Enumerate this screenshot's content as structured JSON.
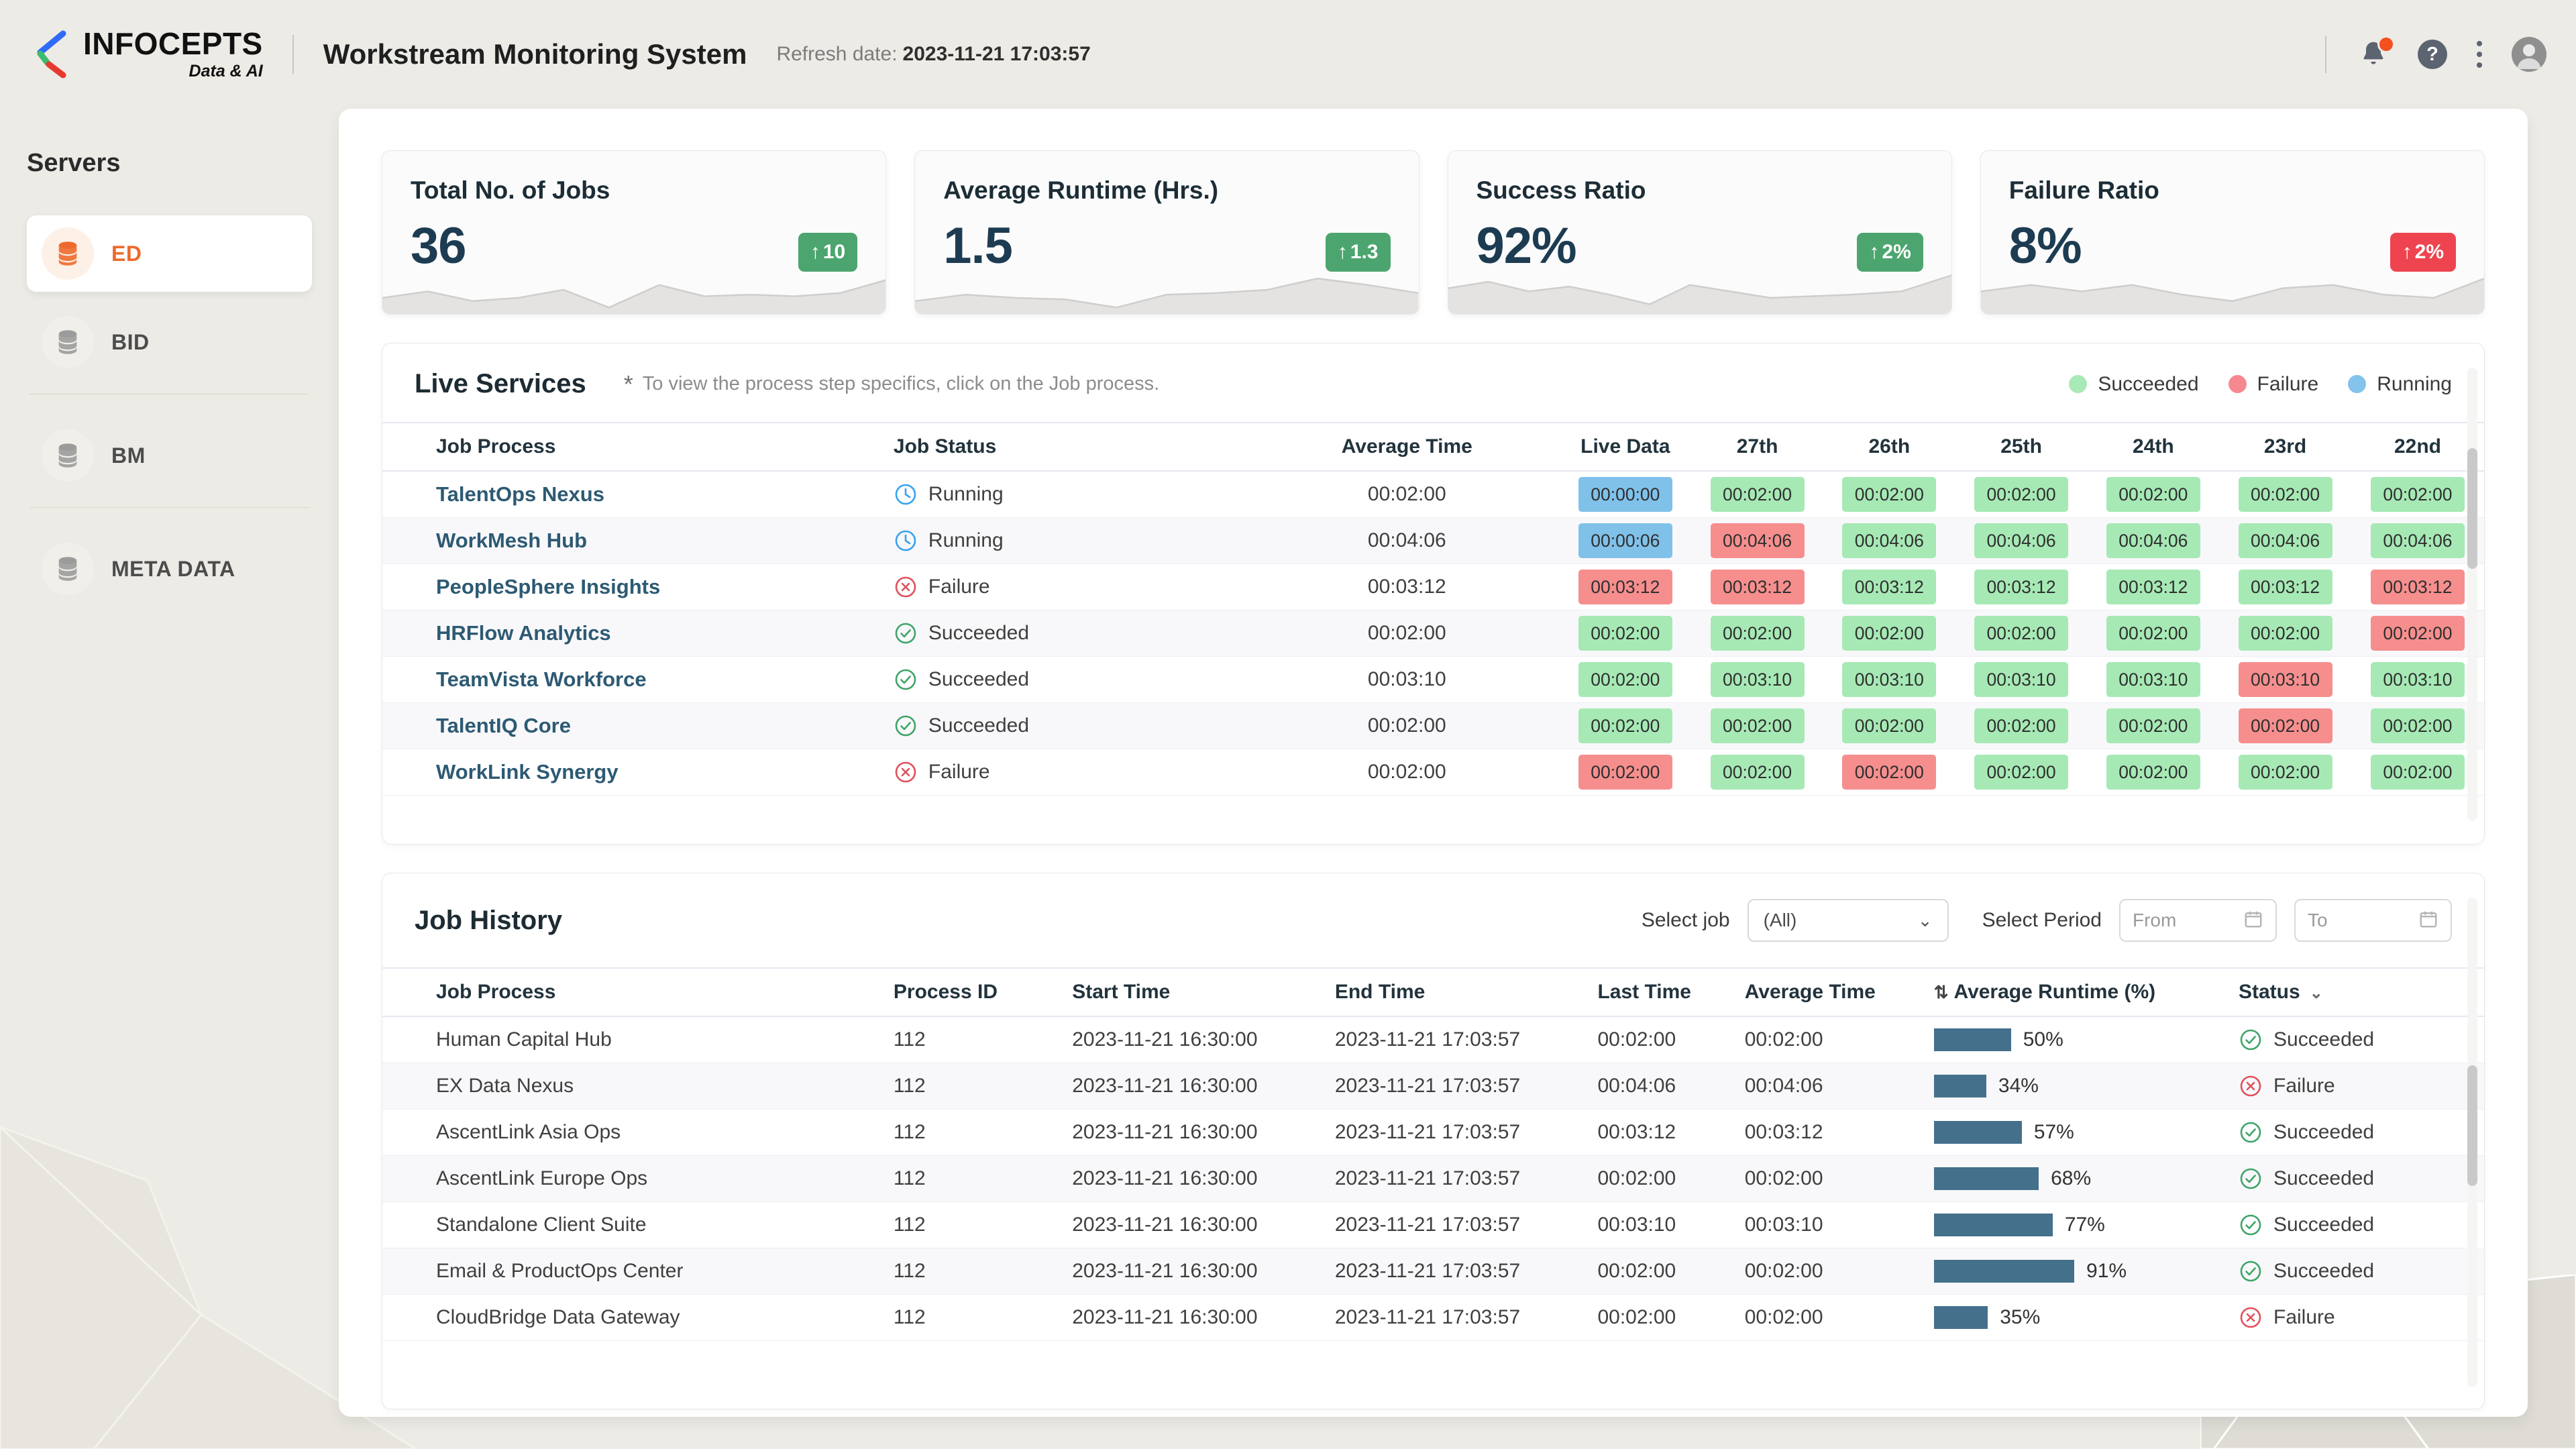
{
  "header": {
    "brand": {
      "name": "INFOCEPTS",
      "tagline": "Data & AI"
    },
    "title": "Workstream Monitoring System",
    "refresh_label": "Refresh date:",
    "refresh_value": "2023-11-21 17:03:57",
    "help_glyph": "?"
  },
  "sidebar": {
    "title": "Servers",
    "items": [
      {
        "label": "ED",
        "active": true
      },
      {
        "label": "BID",
        "active": false
      },
      {
        "label": "BM",
        "active": false
      },
      {
        "label": "META DATA",
        "active": false
      }
    ]
  },
  "kpis": [
    {
      "title": "Total No. of Jobs",
      "value": "36",
      "arrow": "↑",
      "delta": "10",
      "tone": "green",
      "sparkline": [
        [
          0,
          20
        ],
        [
          9,
          16
        ],
        [
          18,
          22
        ],
        [
          27,
          20
        ],
        [
          36,
          15
        ],
        [
          45,
          26
        ],
        [
          55,
          12
        ],
        [
          64,
          19
        ],
        [
          73,
          18
        ],
        [
          82,
          19
        ],
        [
          91,
          17
        ],
        [
          100,
          9
        ]
      ]
    },
    {
      "title": "Average Runtime (Hrs.)",
      "value": "1.5",
      "arrow": "↑",
      "delta": "1.3",
      "tone": "green",
      "sparkline": [
        [
          0,
          22
        ],
        [
          10,
          18
        ],
        [
          20,
          20
        ],
        [
          30,
          21
        ],
        [
          40,
          26
        ],
        [
          50,
          18
        ],
        [
          60,
          17
        ],
        [
          70,
          15
        ],
        [
          80,
          8
        ],
        [
          90,
          12
        ],
        [
          100,
          17
        ]
      ]
    },
    {
      "title": "Success Ratio",
      "value": "92%",
      "arrow": "↑",
      "delta": "2%",
      "tone": "green",
      "sparkline": [
        [
          0,
          14
        ],
        [
          8,
          10
        ],
        [
          16,
          16
        ],
        [
          24,
          13
        ],
        [
          32,
          18
        ],
        [
          40,
          24
        ],
        [
          48,
          12
        ],
        [
          56,
          16
        ],
        [
          64,
          20
        ],
        [
          72,
          19
        ],
        [
          80,
          18
        ],
        [
          90,
          16
        ],
        [
          100,
          6
        ]
      ]
    },
    {
      "title": "Failure Ratio",
      "value": "8%",
      "arrow": "↑",
      "delta": "2%",
      "tone": "red",
      "sparkline": [
        [
          0,
          16
        ],
        [
          10,
          12
        ],
        [
          20,
          16
        ],
        [
          30,
          12
        ],
        [
          40,
          18
        ],
        [
          50,
          22
        ],
        [
          60,
          14
        ],
        [
          70,
          12
        ],
        [
          80,
          18
        ],
        [
          90,
          20
        ],
        [
          100,
          8
        ]
      ]
    }
  ],
  "live_services": {
    "title": "Live Services",
    "note_star": "*",
    "note": "To view the process step specifics, click on the Job process.",
    "legend": [
      {
        "label": "Succeeded",
        "color": "#a9e9b7"
      },
      {
        "label": "Failure",
        "color": "#f6898f"
      },
      {
        "label": "Running",
        "color": "#83c3ec"
      }
    ],
    "columns": [
      "Job Process",
      "Job Status",
      "Average Time",
      "Live Data",
      "27th",
      "26th",
      "25th",
      "24th",
      "23rd",
      "22nd"
    ],
    "rows": [
      {
        "name": "TalentOps Nexus",
        "status": "Running",
        "avg": "00:02:00",
        "cells": [
          {
            "value": "00:00:00",
            "tone": "blue"
          },
          {
            "value": "00:02:00",
            "tone": "green"
          },
          {
            "value": "00:02:00",
            "tone": "green"
          },
          {
            "value": "00:02:00",
            "tone": "green"
          },
          {
            "value": "00:02:00",
            "tone": "green"
          },
          {
            "value": "00:02:00",
            "tone": "green"
          },
          {
            "value": "00:02:00",
            "tone": "green"
          }
        ]
      },
      {
        "name": "WorkMesh Hub",
        "status": "Running",
        "avg": "00:04:06",
        "cells": [
          {
            "value": "00:00:06",
            "tone": "blue"
          },
          {
            "value": "00:04:06",
            "tone": "red"
          },
          {
            "value": "00:04:06",
            "tone": "green"
          },
          {
            "value": "00:04:06",
            "tone": "green"
          },
          {
            "value": "00:04:06",
            "tone": "green"
          },
          {
            "value": "00:04:06",
            "tone": "green"
          },
          {
            "value": "00:04:06",
            "tone": "green"
          }
        ]
      },
      {
        "name": "PeopleSphere Insights",
        "status": "Failure",
        "avg": "00:03:12",
        "cells": [
          {
            "value": "00:03:12",
            "tone": "red"
          },
          {
            "value": "00:03:12",
            "tone": "red"
          },
          {
            "value": "00:03:12",
            "tone": "green"
          },
          {
            "value": "00:03:12",
            "tone": "green"
          },
          {
            "value": "00:03:12",
            "tone": "green"
          },
          {
            "value": "00:03:12",
            "tone": "green"
          },
          {
            "value": "00:03:12",
            "tone": "red"
          }
        ]
      },
      {
        "name": "HRFlow Analytics",
        "status": "Succeeded",
        "avg": "00:02:00",
        "cells": [
          {
            "value": "00:02:00",
            "tone": "green"
          },
          {
            "value": "00:02:00",
            "tone": "green"
          },
          {
            "value": "00:02:00",
            "tone": "green"
          },
          {
            "value": "00:02:00",
            "tone": "green"
          },
          {
            "value": "00:02:00",
            "tone": "green"
          },
          {
            "value": "00:02:00",
            "tone": "green"
          },
          {
            "value": "00:02:00",
            "tone": "red"
          }
        ]
      },
      {
        "name": "TeamVista Workforce",
        "status": "Succeeded",
        "avg": "00:03:10",
        "cells": [
          {
            "value": "00:02:00",
            "tone": "green"
          },
          {
            "value": "00:03:10",
            "tone": "green"
          },
          {
            "value": "00:03:10",
            "tone": "green"
          },
          {
            "value": "00:03:10",
            "tone": "green"
          },
          {
            "value": "00:03:10",
            "tone": "green"
          },
          {
            "value": "00:03:10",
            "tone": "red"
          },
          {
            "value": "00:03:10",
            "tone": "green"
          }
        ]
      },
      {
        "name": "TalentIQ Core",
        "status": "Succeeded",
        "avg": "00:02:00",
        "cells": [
          {
            "value": "00:02:00",
            "tone": "green"
          },
          {
            "value": "00:02:00",
            "tone": "green"
          },
          {
            "value": "00:02:00",
            "tone": "green"
          },
          {
            "value": "00:02:00",
            "tone": "green"
          },
          {
            "value": "00:02:00",
            "tone": "green"
          },
          {
            "value": "00:02:00",
            "tone": "red"
          },
          {
            "value": "00:02:00",
            "tone": "green"
          }
        ]
      },
      {
        "name": "WorkLink Synergy",
        "status": "Failure",
        "avg": "00:02:00",
        "cells": [
          {
            "value": "00:02:00",
            "tone": "red"
          },
          {
            "value": "00:02:00",
            "tone": "green"
          },
          {
            "value": "00:02:00",
            "tone": "red"
          },
          {
            "value": "00:02:00",
            "tone": "green"
          },
          {
            "value": "00:02:00",
            "tone": "green"
          },
          {
            "value": "00:02:00",
            "tone": "green"
          },
          {
            "value": "00:02:00",
            "tone": "green"
          }
        ]
      }
    ]
  },
  "job_history": {
    "title": "Job History",
    "filters": {
      "select_job_label": "Select job",
      "select_job_value": "(All)",
      "select_chevron": "⌄",
      "select_period_label": "Select Period",
      "from_placeholder": "From",
      "to_placeholder": "To"
    },
    "sort_icon": "⇅",
    "status_chevron": "⌄",
    "columns": [
      "Job Process",
      "Process ID",
      "Start Time",
      "End Time",
      "Last Time",
      "Average Time",
      "Average Runtime (%)",
      "Status"
    ],
    "rows": [
      {
        "name": "Human Capital Hub",
        "pid": "112",
        "start": "2023-11-21 16:30:00",
        "end": "2023-11-21 17:03:57",
        "last": "00:02:00",
        "avg": "00:02:00",
        "runtime_pct": 50,
        "status": "Succeeded"
      },
      {
        "name": "EX Data Nexus",
        "pid": "112",
        "start": "2023-11-21 16:30:00",
        "end": "2023-11-21 17:03:57",
        "last": "00:04:06",
        "avg": "00:04:06",
        "runtime_pct": 34,
        "status": "Failure"
      },
      {
        "name": "AscentLink Asia Ops",
        "pid": "112",
        "start": "2023-11-21 16:30:00",
        "end": "2023-11-21 17:03:57",
        "last": "00:03:12",
        "avg": "00:03:12",
        "runtime_pct": 57,
        "status": "Succeeded"
      },
      {
        "name": "AscentLink Europe Ops",
        "pid": "112",
        "start": "2023-11-21 16:30:00",
        "end": "2023-11-21 17:03:57",
        "last": "00:02:00",
        "avg": "00:02:00",
        "runtime_pct": 68,
        "status": "Succeeded"
      },
      {
        "name": "Standalone Client Suite",
        "pid": "112",
        "start": "2023-11-21 16:30:00",
        "end": "2023-11-21 17:03:57",
        "last": "00:03:10",
        "avg": "00:03:10",
        "runtime_pct": 77,
        "status": "Succeeded"
      },
      {
        "name": "Email & ProductOps Center",
        "pid": "112",
        "start": "2023-11-21 16:30:00",
        "end": "2023-11-21 17:03:57",
        "last": "00:02:00",
        "avg": "00:02:00",
        "runtime_pct": 91,
        "status": "Succeeded"
      },
      {
        "name": "CloudBridge Data Gateway",
        "pid": "112",
        "start": "2023-11-21 16:30:00",
        "end": "2023-11-21 17:03:57",
        "last": "00:02:00",
        "avg": "00:02:00",
        "runtime_pct": 35,
        "status": "Failure"
      }
    ]
  },
  "colors": {
    "accent_orange": "#ed6a2c",
    "badge_green": "#4ca56f",
    "badge_red": "#ee4450",
    "chip_green": "#a6e9b5",
    "chip_red": "#f68e8e",
    "chip_blue": "#80c1ea",
    "bar_blue": "#44708c",
    "status_green": "#3fa468",
    "status_red": "#e0515c",
    "status_blue": "#35a3ef",
    "page_bg": "#edebe6"
  }
}
